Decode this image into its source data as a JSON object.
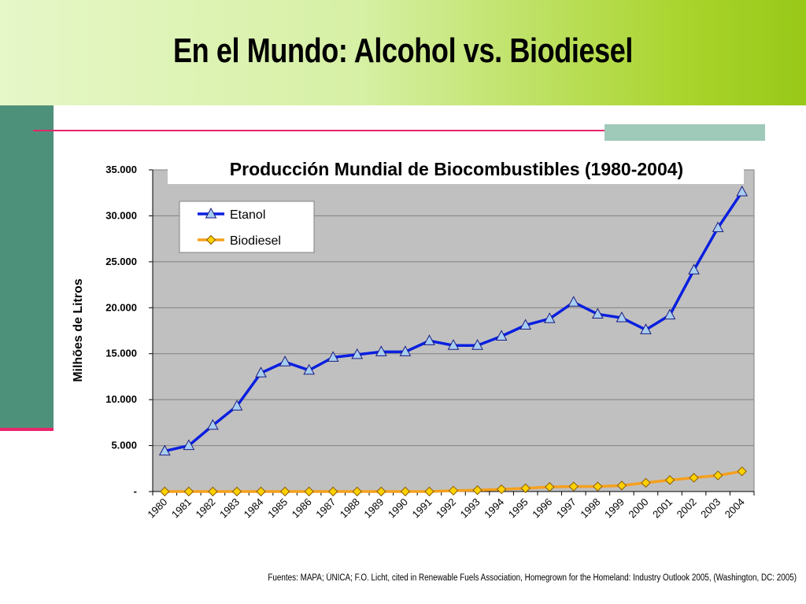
{
  "slide": {
    "title": "En el Mundo: Alcohol vs. Biodiesel",
    "source": "Fuentes: MAPA; ÚNICA; F.O. Licht, cited in Renewable Fuels Association, Homegrown for the Homeland: Industry Outlook 2005, (Washington, DC: 2005)"
  },
  "colors": {
    "header_light": "#e6f7c8",
    "header_dark": "#98c818",
    "side_bar": "#4e917a",
    "accent": "#e8246c",
    "plot_bg": "#c0c0c0",
    "etanol_line": "#0a1fe0",
    "etanol_marker": "#a8cef0",
    "biodiesel_line": "#f5a01e",
    "biodiesel_marker": "#ffd200"
  },
  "chart_data": {
    "type": "line",
    "title": "Producción Mundial de Biocombustibles (1980-2004)",
    "xlabel": "",
    "ylabel": "Milhões de Litros",
    "ylim": [
      0,
      35000
    ],
    "yticks": [
      {
        "value": 0,
        "label": "-"
      },
      {
        "value": 5000,
        "label": "5.000"
      },
      {
        "value": 10000,
        "label": "10.000"
      },
      {
        "value": 15000,
        "label": "15.000"
      },
      {
        "value": 20000,
        "label": "20.000"
      },
      {
        "value": 25000,
        "label": "25.000"
      },
      {
        "value": 30000,
        "label": "30.000"
      },
      {
        "value": 35000,
        "label": "35.000"
      }
    ],
    "categories": [
      "1980",
      "1981",
      "1982",
      "1983",
      "1984",
      "1985",
      "1986",
      "1987",
      "1988",
      "1989",
      "1990",
      "1991",
      "1992",
      "1993",
      "1994",
      "1995",
      "1996",
      "1997",
      "1998",
      "1999",
      "2000",
      "2001",
      "2002",
      "2003",
      "2004"
    ],
    "grid": true,
    "legend_position": "top-left",
    "series": [
      {
        "name": "Etanol",
        "marker": "triangle",
        "values": [
          4400,
          5000,
          7200,
          9300,
          12900,
          14100,
          13200,
          14600,
          14900,
          15200,
          15200,
          16400,
          15900,
          15900,
          16900,
          18100,
          18800,
          20600,
          19300,
          18900,
          17600,
          19200,
          24100,
          28700,
          32600
        ]
      },
      {
        "name": "Biodiesel",
        "marker": "diamond",
        "values": [
          0,
          0,
          0,
          0,
          0,
          0,
          0,
          0,
          0,
          0,
          0,
          0,
          100,
          150,
          250,
          350,
          500,
          550,
          550,
          650,
          950,
          1250,
          1500,
          1750,
          2200
        ]
      }
    ]
  }
}
